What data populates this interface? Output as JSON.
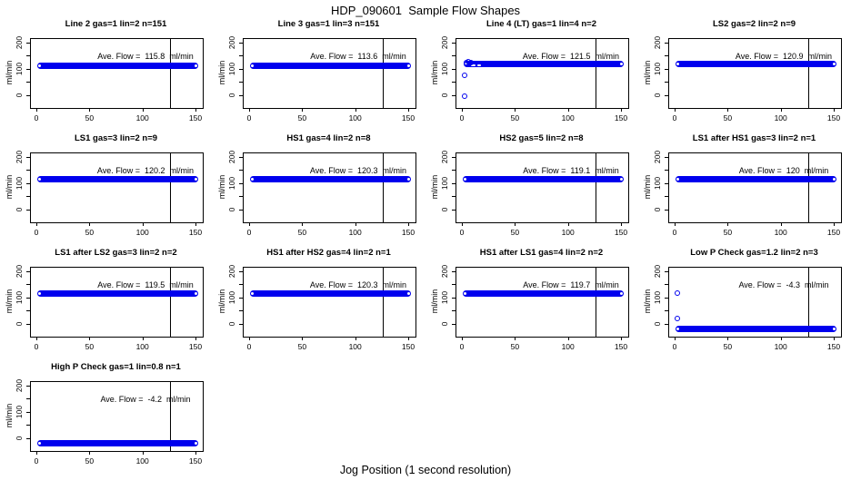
{
  "title": "HDP_090601  Sample Flow Shapes",
  "xlabel": "Jog Position (1 second resolution)",
  "annotation": {
    "prefix": "Ave. Flow =",
    "unit": "ml/min"
  },
  "colors": {
    "point": "#0000EE",
    "axis": "#000000",
    "background": "#FFFFFF"
  },
  "axes": {
    "ylabel": "ml/min",
    "x_ticks": [
      0,
      50,
      100,
      150
    ],
    "y_ticks": [
      0,
      50,
      100,
      150,
      200
    ],
    "y_labeled_ticks": [
      0,
      100,
      200
    ],
    "xlim": [
      -6,
      156
    ],
    "ylim": [
      -45,
      217
    ],
    "vline_x": 125
  },
  "chart_data": [
    {
      "type": "scatter",
      "title": "Line 2 gas=1 lin=2 n=151",
      "ave_flow": "115.8",
      "band_y": 115.8,
      "band_x": [
        0,
        152
      ],
      "outliers": []
    },
    {
      "type": "scatter",
      "title": "Line 3 gas=1 lin=3 n=151",
      "ave_flow": "113.6",
      "band_y": 113.6,
      "band_x": [
        0,
        152
      ],
      "outliers": []
    },
    {
      "type": "scatter",
      "title": "Line 4 (LT) gas=1 lin=4 n=2",
      "ave_flow": "121.5",
      "band_y": 121.5,
      "band_x": [
        1,
        152
      ],
      "outliers": [
        [
          2,
          0
        ],
        [
          2,
          80
        ],
        [
          3,
          128
        ],
        [
          5,
          130
        ],
        [
          8,
          127
        ]
      ],
      "band_gaps": [
        [
          8,
          12
        ],
        [
          14,
          17
        ]
      ]
    },
    {
      "type": "scatter",
      "title": "LS2 gas=2 lin=2 n=9",
      "ave_flow": "120.9",
      "band_y": 120.9,
      "band_x": [
        0,
        152
      ],
      "outliers": []
    },
    {
      "type": "scatter",
      "title": "LS1 gas=3 lin=2 n=9",
      "ave_flow": "120.2",
      "band_y": 120.2,
      "band_x": [
        0,
        152
      ],
      "outliers": []
    },
    {
      "type": "scatter",
      "title": "HS1 gas=4 lin=2 n=8",
      "ave_flow": "120.3",
      "band_y": 120.3,
      "band_x": [
        0,
        152
      ],
      "outliers": []
    },
    {
      "type": "scatter",
      "title": "HS2 gas=5 lin=2 n=8",
      "ave_flow": "119.1",
      "band_y": 119.1,
      "band_x": [
        0,
        152
      ],
      "outliers": []
    },
    {
      "type": "scatter",
      "title": "LS1 after HS1 gas=3 lin=2 n=1",
      "ave_flow": "120",
      "band_y": 120,
      "band_x": [
        0,
        152
      ],
      "outliers": []
    },
    {
      "type": "scatter",
      "title": "LS1 after LS2 gas=3 lin=2 n=2",
      "ave_flow": "119.5",
      "band_y": 119.5,
      "band_x": [
        0,
        152
      ],
      "outliers": []
    },
    {
      "type": "scatter",
      "title": "HS1 after HS2 gas=4 lin=2 n=1",
      "ave_flow": "120.3",
      "band_y": 120.3,
      "band_x": [
        0,
        152
      ],
      "outliers": []
    },
    {
      "type": "scatter",
      "title": "HS1 after LS1 gas=4 lin=2 n=2",
      "ave_flow": "119.7",
      "band_y": 119.7,
      "band_x": [
        0,
        152
      ],
      "outliers": []
    },
    {
      "type": "scatter",
      "title": "Low P Check gas=1.2 lin=2 n=3",
      "ave_flow": "-4.3",
      "band_y": -15,
      "band_x": [
        0,
        152
      ],
      "outliers": [
        [
          2,
          120
        ],
        [
          2,
          25
        ]
      ]
    },
    {
      "type": "scatter",
      "title": "High P Check gas=1 lin=0.8 n=1",
      "ave_flow": "-4.2",
      "band_y": -15,
      "band_x": [
        0,
        152
      ],
      "outliers": []
    }
  ]
}
